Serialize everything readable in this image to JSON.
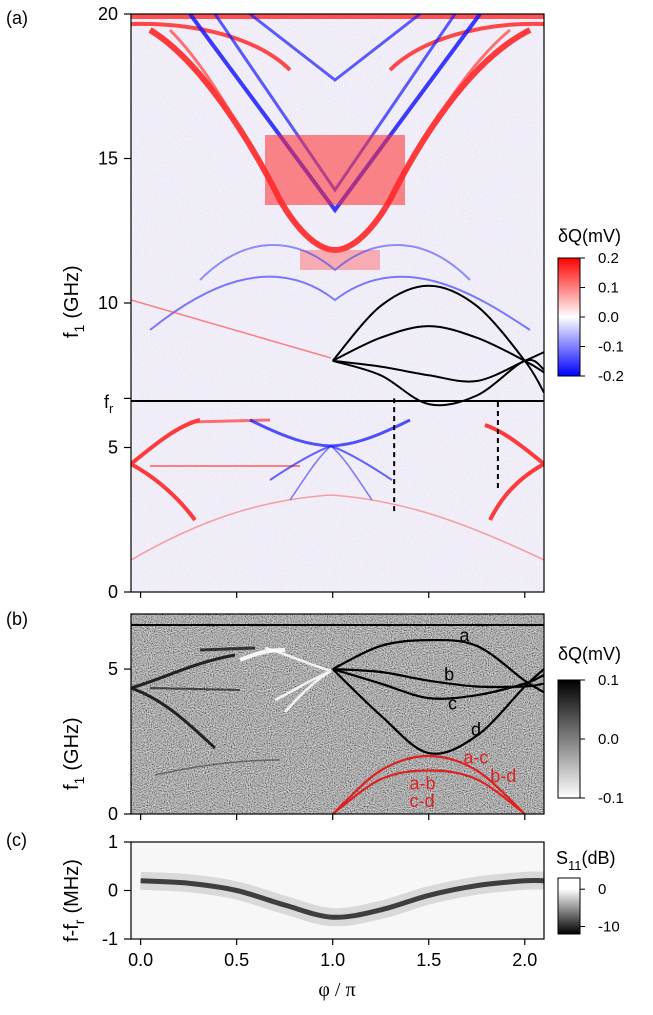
{
  "chart_data": [
    {
      "panel_label": "(a)",
      "type": "heatmap",
      "ylabel": "f",
      "ylabel_sub": "1",
      "ylabel_unit": "(GHz)",
      "ylim": [
        0,
        20
      ],
      "xlim": [
        -0.05,
        2.1
      ],
      "yticks": [
        0,
        5,
        10,
        15,
        20
      ],
      "ytick_labels": [
        "0",
        "5",
        "10",
        "15",
        "20"
      ],
      "special_tick": {
        "label": "f",
        "sub": "r",
        "y": 6.7
      },
      "colorbar": {
        "label": "δQ(mV)",
        "range": [
          -0.2,
          0.2
        ],
        "ticks": [
          0.2,
          0.1,
          0.0,
          -0.1,
          -0.2
        ],
        "tick_labels": [
          "0.2",
          "0.1",
          "0.0",
          "-0.1",
          "-0.2"
        ],
        "colors": [
          "#0000ff",
          "#ffffff",
          "#ff0000"
        ]
      },
      "overlay_curves": [
        {
          "name": "",
          "x": [
            1.0,
            1.25,
            1.5,
            1.75,
            2.0,
            2.1
          ],
          "y": [
            8.0,
            9.9,
            10.6,
            9.9,
            8.0,
            6.9
          ],
          "color": "#000000"
        },
        {
          "name": "",
          "x": [
            1.0,
            1.25,
            1.5,
            1.75,
            2.0,
            2.1
          ],
          "y": [
            8.0,
            8.8,
            9.2,
            8.8,
            8.0,
            7.6
          ],
          "color": "#000000"
        },
        {
          "name": "",
          "x": [
            1.0,
            1.25,
            1.5,
            1.75,
            2.0,
            2.1
          ],
          "y": [
            8.0,
            7.8,
            7.5,
            7.3,
            8.0,
            8.3
          ],
          "color": "#000000"
        },
        {
          "name": "",
          "x": [
            1.0,
            1.25,
            1.5,
            1.75,
            2.0,
            2.1
          ],
          "y": [
            8.0,
            7.5,
            6.5,
            6.8,
            8.0,
            7.7
          ],
          "color": "#000000"
        }
      ],
      "dashed_lines": [
        {
          "x": 1.32,
          "y": [
            2.8,
            6.7
          ]
        },
        {
          "x": 1.86,
          "y": [
            3.6,
            6.7
          ]
        }
      ],
      "hline": {
        "y": 6.7
      }
    },
    {
      "panel_label": "(b)",
      "type": "heatmap",
      "ylabel": "f",
      "ylabel_sub": "1",
      "ylabel_unit": "(GHz)",
      "ylim": [
        0,
        6.9
      ],
      "xlim": [
        -0.05,
        2.1
      ],
      "yticks": [
        0,
        5
      ],
      "ytick_labels": [
        "0",
        "5"
      ],
      "colorbar": {
        "label": "δQ(mV)",
        "range": [
          -0.1,
          0.1
        ],
        "ticks": [
          0.1,
          0.0,
          -0.1
        ],
        "tick_labels": [
          "0.1",
          "0.0",
          "-0.1"
        ],
        "colors": [
          "#000000",
          "#ffffff"
        ]
      },
      "overlay_curves": [
        {
          "name": "a",
          "x": [
            1.0,
            1.25,
            1.5,
            1.75,
            2.0,
            2.1
          ],
          "y": [
            5.0,
            5.8,
            6.0,
            5.8,
            4.6,
            4.2
          ],
          "color": "#000000"
        },
        {
          "name": "b",
          "x": [
            1.0,
            1.25,
            1.5,
            1.75,
            2.0,
            2.1
          ],
          "y": [
            5.0,
            4.9,
            4.6,
            4.4,
            4.4,
            4.5
          ],
          "color": "#000000"
        },
        {
          "name": "c",
          "x": [
            1.0,
            1.25,
            1.5,
            1.75,
            2.0,
            2.1
          ],
          "y": [
            5.0,
            4.5,
            4.0,
            4.1,
            4.5,
            4.8
          ],
          "color": "#000000"
        },
        {
          "name": "d",
          "x": [
            1.0,
            1.25,
            1.5,
            1.75,
            2.0,
            2.1
          ],
          "y": [
            5.0,
            3.4,
            2.1,
            2.7,
            4.4,
            5.0
          ],
          "color": "#000000"
        },
        {
          "name": "a-c",
          "x": [
            1.0,
            1.25,
            1.5,
            1.75,
            2.0
          ],
          "y": [
            0.0,
            1.5,
            2.0,
            1.5,
            0.0
          ],
          "color": "#dd2222"
        },
        {
          "name": "b-d",
          "x": [
            1.0,
            1.25,
            1.5,
            1.75,
            2.0
          ],
          "y": [
            0.0,
            1.2,
            1.5,
            1.2,
            0.0
          ],
          "color": "#dd2222"
        }
      ],
      "curve_labels": [
        "a",
        "b",
        "c",
        "d"
      ],
      "red_labels": [
        "a-c",
        "b-d",
        "a-b",
        "c-d"
      ]
    },
    {
      "panel_label": "(c)",
      "type": "heatmap",
      "ylabel": "f-f",
      "ylabel_sub": "r",
      "ylabel_unit": "(MHz)",
      "ylim": [
        -1,
        1
      ],
      "xlim": [
        -0.05,
        2.1
      ],
      "yticks": [
        -1,
        0,
        1
      ],
      "ytick_labels": [
        "-1",
        "0",
        "1"
      ],
      "xlabel": "φ / π",
      "xticks": [
        0.0,
        0.5,
        1.0,
        1.5,
        2.0
      ],
      "xtick_labels": [
        "0.0",
        "0.5",
        "1.0",
        "1.5",
        "2.0"
      ],
      "colorbar": {
        "label": "S",
        "label_sub": "11",
        "label_unit": "(dB)",
        "range": [
          -12,
          3
        ],
        "ticks": [
          0,
          -10
        ],
        "tick_labels": [
          "0",
          "-10"
        ],
        "colors": [
          "#000000",
          "#ffffff"
        ]
      },
      "resonance": {
        "x": [
          0.0,
          0.25,
          0.5,
          0.75,
          1.0,
          1.25,
          1.5,
          1.75,
          2.0,
          2.1
        ],
        "y": [
          0.2,
          0.15,
          0.0,
          -0.3,
          -0.55,
          -0.4,
          -0.1,
          0.1,
          0.2,
          0.2
        ]
      }
    }
  ]
}
